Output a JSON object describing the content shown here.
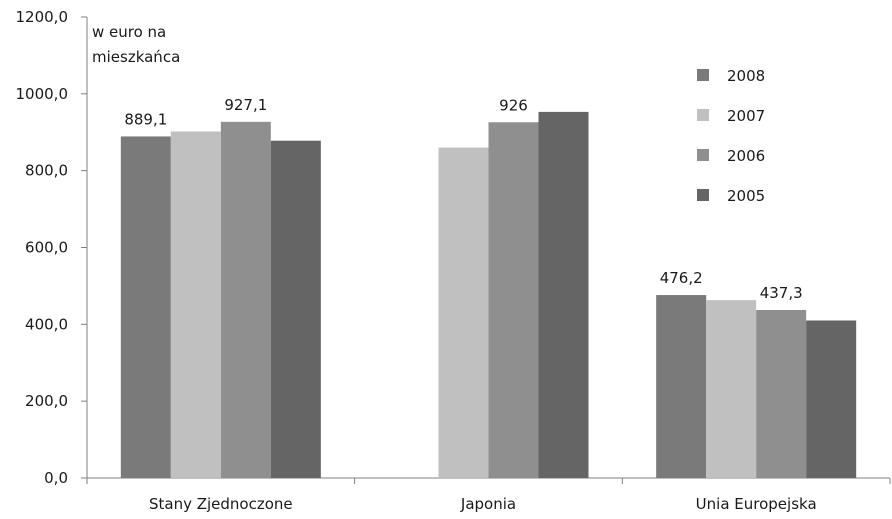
{
  "chart_data": {
    "type": "bar",
    "unit_label_lines": [
      "w euro na",
      "mieszkańca"
    ],
    "ylim": [
      0,
      1200
    ],
    "yticks": [
      0,
      200,
      400,
      600,
      800,
      1000,
      1200
    ],
    "ytick_labels": [
      "0,0",
      "200,0",
      "400,0",
      "600,0",
      "800,0",
      "1000,0",
      "1200,0"
    ],
    "categories": [
      "Stany Zjednoczone",
      "Japonia",
      "Unia Europejska"
    ],
    "series": [
      {
        "name": "2008",
        "color": "#7a7a7a",
        "values": [
          889.1,
          null,
          476.2
        ]
      },
      {
        "name": "2007",
        "color": "#c0c0c0",
        "values": [
          902,
          860,
          463
        ]
      },
      {
        "name": "2006",
        "color": "#8f8f8f",
        "values": [
          927.1,
          926,
          437.3
        ]
      },
      {
        "name": "2005",
        "color": "#656565",
        "values": [
          878,
          953,
          410
        ]
      }
    ],
    "data_labels": [
      {
        "series": 0,
        "category": 0,
        "text": "889,1"
      },
      {
        "series": 2,
        "category": 0,
        "text": "927,1"
      },
      {
        "series": 2,
        "category": 1,
        "text": "926"
      },
      {
        "series": 0,
        "category": 2,
        "text": "476,2"
      },
      {
        "series": 2,
        "category": 2,
        "text": "437,3"
      }
    ],
    "legend_position": "top-right",
    "grid": false
  }
}
